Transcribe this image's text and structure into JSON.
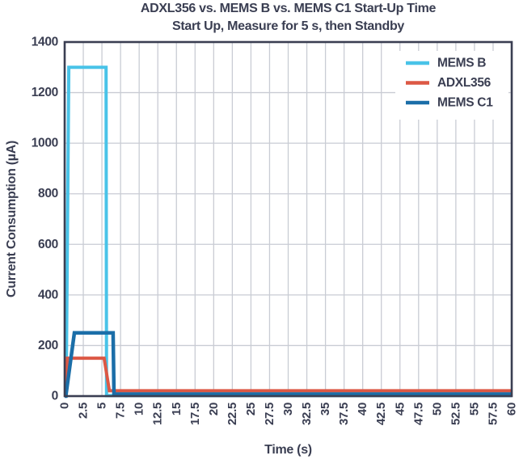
{
  "title": "ADXL356 vs. MEMS B vs. MEMS C1 Start-Up Time",
  "subtitle": "Start Up, Measure for 5 s, then Standby",
  "colors": {
    "text": "#3A3E52",
    "plot_border": "#3A3E52",
    "gridline": "#C9CCD4",
    "background": "#FFFFFF",
    "mems_b": "#49C3E8",
    "adxl356": "#DC5845",
    "mems_c1": "#1B6EA8"
  },
  "chart_data": {
    "type": "line",
    "title": "ADXL356 vs. MEMS B vs. MEMS C1 Start-Up Time",
    "subtitle": "Start Up, Measure for 5 s, then Standby",
    "xlabel": "Time (s)",
    "ylabel": "Current Consumption (µA)",
    "xlim": [
      0,
      60
    ],
    "ylim": [
      0,
      1400
    ],
    "x_tick_step": 2.5,
    "y_tick_step": 200,
    "grid": true,
    "legend_position": "top-right",
    "x_ticks": [
      "0",
      "2.5",
      "5",
      "7.5",
      "10",
      "12.5",
      "15",
      "17.5",
      "20",
      "22.5",
      "25",
      "27.5",
      "30",
      "32.5",
      "35",
      "37.5",
      "40",
      "42.5",
      "45",
      "47.5",
      "50",
      "52.5",
      "55",
      "57.5",
      "60"
    ],
    "y_ticks": [
      "0",
      "200",
      "400",
      "600",
      "800",
      "1000",
      "1200",
      "1400"
    ],
    "series": [
      {
        "name": "MEMS B",
        "color": "#49C3E8",
        "stroke_width": 4,
        "points": [
          [
            0,
            0
          ],
          [
            0.2,
            0
          ],
          [
            0.55,
            1300
          ],
          [
            5.55,
            1300
          ],
          [
            5.62,
            2
          ],
          [
            60,
            2
          ]
        ]
      },
      {
        "name": "ADXL356",
        "color": "#DC5845",
        "stroke_width": 4,
        "points": [
          [
            0,
            0
          ],
          [
            0.1,
            0
          ],
          [
            0.35,
            150
          ],
          [
            5.3,
            150
          ],
          [
            6.0,
            21
          ],
          [
            60,
            21
          ]
        ]
      },
      {
        "name": "MEMS C1",
        "color": "#1B6EA8",
        "stroke_width": 4.5,
        "points": [
          [
            0,
            0
          ],
          [
            0.15,
            0
          ],
          [
            1.3,
            250
          ],
          [
            6.5,
            250
          ],
          [
            6.62,
            8
          ],
          [
            60,
            8
          ]
        ]
      }
    ]
  }
}
